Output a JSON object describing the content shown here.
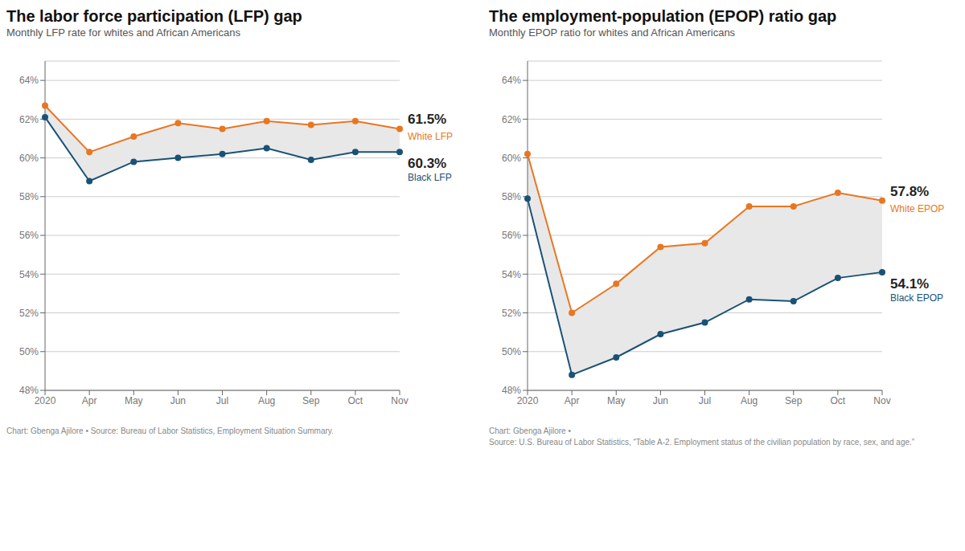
{
  "chart_data": [
    {
      "type": "line",
      "title": "The labor force participation (LFP) gap",
      "subtitle": "Monthly LFP rate for whites and African Americans",
      "source": [
        "Chart: Gbenga Ajilore • Source: Bureau of Labor Statistics, Employment Situation Summary."
      ],
      "categories": [
        "2020",
        "Apr",
        "May",
        "Jun",
        "Jul",
        "Aug",
        "Sep",
        "Oct",
        "Nov"
      ],
      "series": [
        {
          "name": "White LFP",
          "color": "#e87722",
          "marker": "circle",
          "values": [
            62.7,
            60.3,
            61.1,
            61.8,
            61.5,
            61.9,
            61.7,
            61.9,
            61.5
          ]
        },
        {
          "name": "Black LFP",
          "color": "#1a5276",
          "marker": "circle",
          "values": [
            62.1,
            58.8,
            59.8,
            60.0,
            60.2,
            60.5,
            59.9,
            60.3,
            60.3
          ]
        }
      ],
      "color": "#e8e8e8",
      "ylim": [
        48,
        65
      ],
      "yticks": [
        {
          "value": 48,
          "label": "48%"
        },
        {
          "value": 50,
          "label": "50%"
        },
        {
          "value": 52,
          "label": "52%"
        },
        {
          "value": 54,
          "label": "54%"
        },
        {
          "value": 56,
          "label": "56%"
        },
        {
          "value": 58,
          "label": "58%"
        },
        {
          "value": 60,
          "label": "60%"
        },
        {
          "value": 62,
          "label": "62%"
        },
        {
          "value": 64,
          "label": "64%"
        }
      ],
      "grid": true,
      "annotations": [
        {
          "text": "61.5%",
          "x": "Nov",
          "y": 61.5
        },
        {
          "text": "60.3%",
          "x": "Nov",
          "y": 60.3
        }
      ]
    },
    {
      "type": "line",
      "title": "The employment-population (EPOP) ratio gap",
      "subtitle": "Monthly EPOP ratio for whites and African Americans",
      "source": [
        "Chart: Gbenga Ajilore •",
        "Source: U.S. Bureau of Labor Statistics, “Table A-2. Employment status of the civilian population by race, sex, and age.”"
      ],
      "categories": [
        "2020",
        "Apr",
        "May",
        "Jun",
        "Jul",
        "Aug",
        "Sep",
        "Oct",
        "Nov"
      ],
      "series": [
        {
          "name": "White EPOP",
          "color": "#e87722",
          "marker": "circle",
          "values": [
            60.2,
            52.0,
            53.5,
            55.4,
            55.6,
            57.5,
            57.5,
            58.2,
            57.8
          ]
        },
        {
          "name": "Black EPOP",
          "color": "#1a5276",
          "marker": "circle",
          "values": [
            57.9,
            48.8,
            49.7,
            50.9,
            51.5,
            52.7,
            52.6,
            53.8,
            54.1
          ]
        }
      ],
      "color": "#e8e8e8",
      "ylim": [
        48,
        65
      ],
      "yticks": [
        {
          "value": 48,
          "label": "48%"
        },
        {
          "value": 50,
          "label": "50%"
        },
        {
          "value": 52,
          "label": "52%"
        },
        {
          "value": 54,
          "label": "54%"
        },
        {
          "value": 56,
          "label": "56%"
        },
        {
          "value": 58,
          "label": "58%"
        },
        {
          "value": 60,
          "label": "60%"
        },
        {
          "value": 62,
          "label": "62%"
        },
        {
          "value": 64,
          "label": "64%"
        }
      ],
      "grid": true,
      "annotations": [
        {
          "text": "57.8%",
          "x": "Nov",
          "y": 57.8
        },
        {
          "text": "54.1%",
          "x": "Nov",
          "y": 54.1
        }
      ]
    }
  ]
}
